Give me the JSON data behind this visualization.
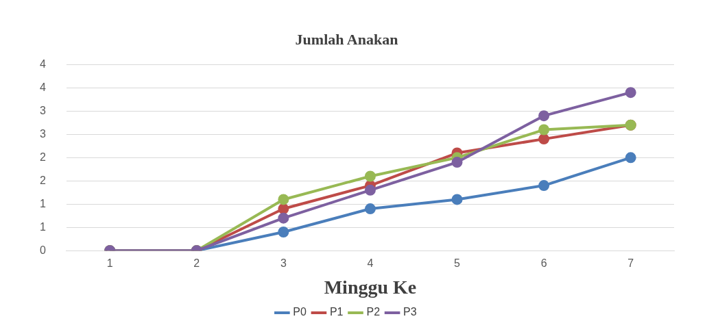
{
  "chart_data": {
    "type": "line",
    "title": "Jumlah Anakan",
    "xlabel": "Minggu Ke",
    "categories": [
      "1",
      "2",
      "3",
      "4",
      "5",
      "6",
      "7"
    ],
    "series": [
      {
        "name": "P0",
        "color": "#4a7ebb",
        "values": [
          0,
          0,
          0.4,
          0.9,
          1.1,
          1.4,
          2.0
        ]
      },
      {
        "name": "P1",
        "color": "#be4b48",
        "values": [
          0,
          0,
          0.9,
          1.4,
          2.1,
          2.4,
          2.7
        ]
      },
      {
        "name": "P2",
        "color": "#98b954",
        "values": [
          0,
          0,
          1.1,
          1.6,
          2.0,
          2.6,
          2.7
        ]
      },
      {
        "name": "P3",
        "color": "#7d60a0",
        "values": [
          0,
          0,
          0.7,
          1.3,
          1.9,
          2.9,
          3.4
        ]
      }
    ],
    "ylim": [
      0,
      4
    ],
    "yticks": [
      0,
      {
        "value": 0.5,
        "label": "1"
      },
      1,
      {
        "value": 1.5,
        "label": "2"
      },
      2,
      {
        "value": 2.5,
        "label": "3"
      },
      3,
      {
        "value": 3.5,
        "label": "4"
      },
      4
    ],
    "grid": "y",
    "legend": "bottom",
    "marker": "circle",
    "line_style": "solid"
  }
}
